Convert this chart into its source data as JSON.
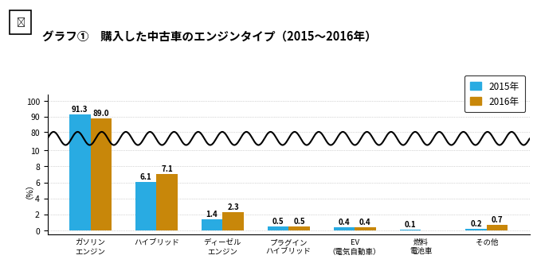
{
  "title_main": "グラフ①　購入した中古車のエンジンタイプ（2015〜2016年）",
  "ylabel": "（%）",
  "categories": [
    "ガソリン\nエンジン",
    "ハイブリッド",
    "ディーゼル\nエンジン",
    "プラグイン\nハイブリッド",
    "EV\n（電気自動車）",
    "燃料\n電池車",
    "その他"
  ],
  "values_2015": [
    91.3,
    6.1,
    1.4,
    0.5,
    0.4,
    0.1,
    0.2
  ],
  "values_2016": [
    89.0,
    7.1,
    2.3,
    0.5,
    0.4,
    0.0,
    0.7
  ],
  "labels_2015": [
    "91.3",
    "6.1",
    "1.4",
    "0.5",
    "0.4",
    "0.1",
    "0.2"
  ],
  "labels_2016": [
    "89.0",
    "7.1",
    "2.3",
    "0.5",
    "0.4",
    "",
    "0.7"
  ],
  "color_2015": "#29ABE2",
  "color_2016": "#C8870A",
  "legend_2015": "2015年",
  "legend_2016": "2016年",
  "yticks_lower": [
    0,
    2,
    4,
    6,
    8,
    10
  ],
  "yticks_upper": [
    80,
    90,
    100
  ],
  "bg_color": "#ffffff",
  "grid_color": "#b0b0b0",
  "bar_width": 0.32
}
